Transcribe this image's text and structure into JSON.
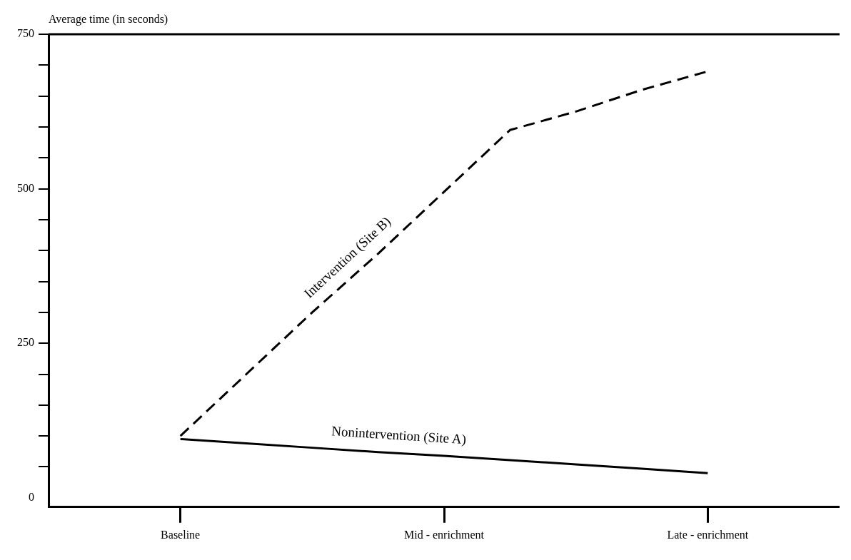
{
  "chart_data": {
    "type": "line",
    "ylabel": "Average time (in seconds)",
    "categories": [
      null,
      null,
      "Baseline",
      null,
      null,
      null,
      "Mid - enrichment",
      null,
      null,
      null,
      "Late - enrichment",
      null,
      null
    ],
    "ylim": [
      -15,
      750
    ],
    "yticks": [
      0,
      {
        "value": 50,
        "label": null
      },
      {
        "value": 100,
        "label": null
      },
      {
        "value": 150,
        "label": null
      },
      {
        "value": 200,
        "label": null
      },
      250,
      {
        "value": 300,
        "label": null
      },
      {
        "value": 350,
        "label": null
      },
      {
        "value": 400,
        "label": null
      },
      {
        "value": 450,
        "label": null
      },
      500,
      {
        "value": 550,
        "label": null
      },
      {
        "value": 600,
        "label": null
      },
      {
        "value": 650,
        "label": null
      },
      {
        "value": 700,
        "label": null
      },
      750
    ],
    "series": [
      {
        "name": "Intervention (Site B)",
        "color": "#000000",
        "line_style": "dashed",
        "values": [
          null,
          null,
          100,
          200,
          300,
          395,
          495,
          595,
          625,
          660,
          690,
          null,
          null
        ]
      },
      {
        "name": "Nonintervention (Site A)",
        "color": "#000000",
        "line_style": "solid",
        "values": [
          null,
          null,
          95,
          88,
          81,
          74,
          68,
          61,
          54,
          47,
          40,
          null,
          null
        ]
      }
    ],
    "grid": false,
    "legend": false,
    "marker": "none"
  }
}
